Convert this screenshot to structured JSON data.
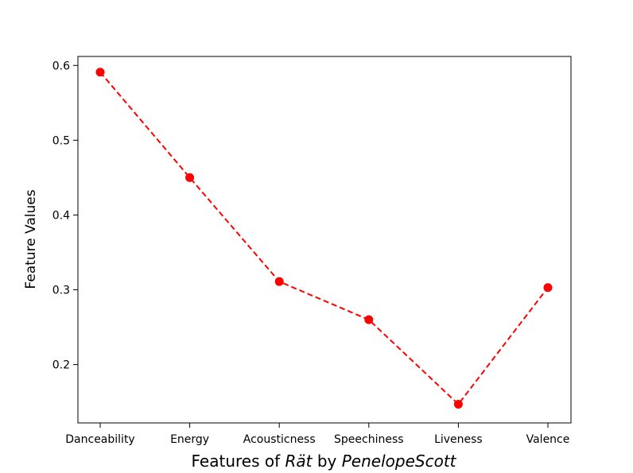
{
  "chart_data": {
    "type": "line",
    "categories": [
      "Danceability",
      "Energy",
      "Acousticness",
      "Speechiness",
      "Liveness",
      "Valence"
    ],
    "series": [
      {
        "values": [
          0.591,
          0.45,
          0.311,
          0.26,
          0.147,
          0.303
        ],
        "color": "#ff0000",
        "line_style": "dashed",
        "marker": "circle"
      }
    ],
    "ylabel": "Feature Values",
    "xlabel": {
      "prefix": "Features of ",
      "song": "Rät",
      "middle": " by ",
      "artist": "PenelopeScott"
    },
    "ylim": [
      0.122,
      0.612
    ],
    "yticks": [
      "0.2",
      "0.3",
      "0.4",
      "0.5",
      "0.6"
    ],
    "grid": false
  }
}
